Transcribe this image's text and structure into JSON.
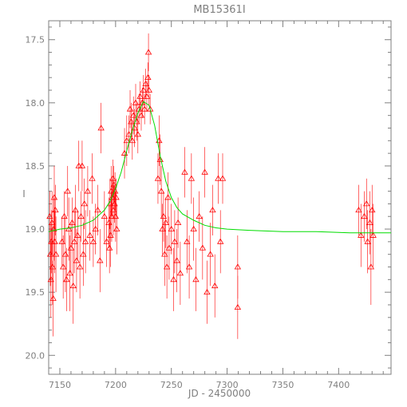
{
  "chart_data": {
    "type": "scatter",
    "title": "MB15361I",
    "xlabel": "JD - 2450000",
    "ylabel": "I",
    "xlim": [
      7140,
      7447
    ],
    "ylim": [
      20.15,
      17.35
    ],
    "y_inverted": true,
    "grid": false,
    "xticks": [
      7150,
      7200,
      7250,
      7300,
      7350,
      7400
    ],
    "yticks": [
      17.5,
      18.0,
      18.5,
      19.0,
      19.5,
      20.0
    ],
    "ytick_labels": [
      "17.5",
      "18.0",
      "18.5",
      "19.0",
      "19.5",
      "20.0"
    ],
    "colors": {
      "axis": "#7f7f7f",
      "data": "#ff0000",
      "model": "#00dd00"
    },
    "series": [
      {
        "kind": "data",
        "marker": "triangle",
        "points": [
          {
            "x": 7141,
            "y": 18.9,
            "err": 0.2
          },
          {
            "x": 7141.5,
            "y": 19.2,
            "err": 0.25
          },
          {
            "x": 7142,
            "y": 19.4,
            "err": 0.3
          },
          {
            "x": 7142.5,
            "y": 19.1,
            "err": 0.25
          },
          {
            "x": 7143,
            "y": 18.95,
            "err": 0.25
          },
          {
            "x": 7143.5,
            "y": 19.3,
            "err": 0.3
          },
          {
            "x": 7144,
            "y": 19.55,
            "err": 0.3
          },
          {
            "x": 7144.5,
            "y": 19.0,
            "err": 0.25
          },
          {
            "x": 7145,
            "y": 18.75,
            "err": 0.25
          },
          {
            "x": 7145.5,
            "y": 19.1,
            "err": 0.25
          },
          {
            "x": 7146,
            "y": 18.85,
            "err": 0.2
          },
          {
            "x": 7146.5,
            "y": 19.2,
            "err": 0.3
          },
          {
            "x": 7152,
            "y": 19.1,
            "err": 0.2
          },
          {
            "x": 7153,
            "y": 19.3,
            "err": 0.25
          },
          {
            "x": 7154,
            "y": 18.9,
            "err": 0.2
          },
          {
            "x": 7155,
            "y": 19.2,
            "err": 0.3
          },
          {
            "x": 7156,
            "y": 19.4,
            "err": 0.25
          },
          {
            "x": 7157,
            "y": 18.7,
            "err": 0.2
          },
          {
            "x": 7158,
            "y": 19.0,
            "err": 0.25
          },
          {
            "x": 7159,
            "y": 19.35,
            "err": 0.3
          },
          {
            "x": 7160,
            "y": 19.15,
            "err": 0.2
          },
          {
            "x": 7161,
            "y": 18.95,
            "err": 0.2
          },
          {
            "x": 7162,
            "y": 19.45,
            "err": 0.3
          },
          {
            "x": 7163,
            "y": 19.1,
            "err": 0.25
          },
          {
            "x": 7164,
            "y": 18.85,
            "err": 0.2
          },
          {
            "x": 7165,
            "y": 19.25,
            "err": 0.25
          },
          {
            "x": 7166,
            "y": 19.05,
            "err": 0.2
          },
          {
            "x": 7167,
            "y": 18.5,
            "err": 0.2
          },
          {
            "x": 7168,
            "y": 19.3,
            "err": 0.25
          },
          {
            "x": 7169,
            "y": 18.9,
            "err": 0.2
          },
          {
            "x": 7170,
            "y": 18.5,
            "err": 0.2
          },
          {
            "x": 7171,
            "y": 19.2,
            "err": 0.25
          },
          {
            "x": 7172,
            "y": 18.8,
            "err": 0.2
          },
          {
            "x": 7173,
            "y": 19.1,
            "err": 0.25
          },
          {
            "x": 7175,
            "y": 18.7,
            "err": 0.2
          },
          {
            "x": 7177,
            "y": 19.05,
            "err": 0.2
          },
          {
            "x": 7179,
            "y": 18.6,
            "err": 0.2
          },
          {
            "x": 7180,
            "y": 19.1,
            "err": 0.2
          },
          {
            "x": 7182,
            "y": 19.0,
            "err": 0.2
          },
          {
            "x": 7184,
            "y": 18.85,
            "err": 0.2
          },
          {
            "x": 7186,
            "y": 19.25,
            "err": 0.25
          },
          {
            "x": 7187,
            "y": 18.2,
            "err": 0.2
          },
          {
            "x": 7190,
            "y": 18.9,
            "err": 0.2
          },
          {
            "x": 7192,
            "y": 19.1,
            "err": 0.2
          },
          {
            "x": 7194,
            "y": 18.95,
            "err": 0.2
          },
          {
            "x": 7194.5,
            "y": 19.15,
            "err": 0.2
          },
          {
            "x": 7195,
            "y": 18.8,
            "err": 0.2
          },
          {
            "x": 7195.5,
            "y": 19.05,
            "err": 0.25
          },
          {
            "x": 7196,
            "y": 18.7,
            "err": 0.2
          },
          {
            "x": 7196.5,
            "y": 18.9,
            "err": 0.2
          },
          {
            "x": 7197,
            "y": 18.75,
            "err": 0.15
          },
          {
            "x": 7197.5,
            "y": 18.6,
            "err": 0.15
          },
          {
            "x": 7198,
            "y": 18.85,
            "err": 0.2
          },
          {
            "x": 7198.5,
            "y": 18.65,
            "err": 0.15
          },
          {
            "x": 7199,
            "y": 18.8,
            "err": 0.15
          },
          {
            "x": 7199.5,
            "y": 18.7,
            "err": 0.15
          },
          {
            "x": 7200,
            "y": 18.9,
            "err": 0.2
          },
          {
            "x": 7200.5,
            "y": 18.75,
            "err": 0.15
          },
          {
            "x": 7201,
            "y": 19.0,
            "err": 0.2
          },
          {
            "x": 7208,
            "y": 18.4,
            "err": 0.2
          },
          {
            "x": 7210,
            "y": 18.3,
            "err": 0.2
          },
          {
            "x": 7212,
            "y": 18.25,
            "err": 0.15
          },
          {
            "x": 7213,
            "y": 18.05,
            "err": 0.15
          },
          {
            "x": 7214,
            "y": 18.15,
            "err": 0.15
          },
          {
            "x": 7215,
            "y": 18.3,
            "err": 0.15
          },
          {
            "x": 7216,
            "y": 18.1,
            "err": 0.15
          },
          {
            "x": 7217,
            "y": 18.2,
            "err": 0.15
          },
          {
            "x": 7218,
            "y": 18.0,
            "err": 0.15
          },
          {
            "x": 7219,
            "y": 18.15,
            "err": 0.15
          },
          {
            "x": 7220,
            "y": 18.25,
            "err": 0.15
          },
          {
            "x": 7221,
            "y": 18.05,
            "err": 0.12
          },
          {
            "x": 7222,
            "y": 17.95,
            "err": 0.12
          },
          {
            "x": 7223,
            "y": 18.1,
            "err": 0.12
          },
          {
            "x": 7224,
            "y": 18.0,
            "err": 0.12
          },
          {
            "x": 7225,
            "y": 17.9,
            "err": 0.12
          },
          {
            "x": 7226,
            "y": 18.05,
            "err": 0.12
          },
          {
            "x": 7227,
            "y": 17.85,
            "err": 0.12
          },
          {
            "x": 7228,
            "y": 17.95,
            "err": 0.12
          },
          {
            "x": 7229,
            "y": 17.8,
            "err": 0.12
          },
          {
            "x": 7229.5,
            "y": 17.6,
            "err": 0.15
          },
          {
            "x": 7230,
            "y": 17.9,
            "err": 0.12
          },
          {
            "x": 7231,
            "y": 18.05,
            "err": 0.12
          },
          {
            "x": 7238,
            "y": 18.6,
            "err": 0.2
          },
          {
            "x": 7239,
            "y": 18.3,
            "err": 0.2
          },
          {
            "x": 7240,
            "y": 18.45,
            "err": 0.2
          },
          {
            "x": 7241,
            "y": 18.7,
            "err": 0.2
          },
          {
            "x": 7242,
            "y": 19.0,
            "err": 0.2
          },
          {
            "x": 7243,
            "y": 18.9,
            "err": 0.2
          },
          {
            "x": 7244,
            "y": 19.2,
            "err": 0.25
          },
          {
            "x": 7245,
            "y": 18.95,
            "err": 0.2
          },
          {
            "x": 7246,
            "y": 19.3,
            "err": 0.25
          },
          {
            "x": 7247,
            "y": 18.75,
            "err": 0.2
          },
          {
            "x": 7248,
            "y": 19.15,
            "err": 0.25
          },
          {
            "x": 7250,
            "y": 19.0,
            "err": 0.2
          },
          {
            "x": 7252,
            "y": 19.4,
            "err": 0.25
          },
          {
            "x": 7253,
            "y": 19.1,
            "err": 0.25
          },
          {
            "x": 7255,
            "y": 19.25,
            "err": 0.25
          },
          {
            "x": 7256,
            "y": 18.95,
            "err": 0.2
          },
          {
            "x": 7258,
            "y": 19.35,
            "err": 0.25
          },
          {
            "x": 7262,
            "y": 18.55,
            "err": 0.2
          },
          {
            "x": 7264,
            "y": 19.1,
            "err": 0.25
          },
          {
            "x": 7266,
            "y": 19.3,
            "err": 0.25
          },
          {
            "x": 7268,
            "y": 18.6,
            "err": 0.2
          },
          {
            "x": 7270,
            "y": 19.0,
            "err": 0.25
          },
          {
            "x": 7272,
            "y": 19.4,
            "err": 0.25
          },
          {
            "x": 7275,
            "y": 18.9,
            "err": 0.2
          },
          {
            "x": 7278,
            "y": 19.15,
            "err": 0.25
          },
          {
            "x": 7280,
            "y": 18.55,
            "err": 0.2
          },
          {
            "x": 7282,
            "y": 19.5,
            "err": 0.25
          },
          {
            "x": 7285,
            "y": 19.2,
            "err": 0.25
          },
          {
            "x": 7287,
            "y": 18.85,
            "err": 0.2
          },
          {
            "x": 7289,
            "y": 19.45,
            "err": 0.25
          },
          {
            "x": 7292,
            "y": 18.6,
            "err": 0.2
          },
          {
            "x": 7294,
            "y": 19.1,
            "err": 0.25
          },
          {
            "x": 7296,
            "y": 18.6,
            "err": 0.2
          },
          {
            "x": 7309.5,
            "y": 19.3,
            "err": 0.25
          },
          {
            "x": 7309.5,
            "y": 19.62,
            "err": 0.25
          },
          {
            "x": 7418,
            "y": 18.85,
            "err": 0.2
          },
          {
            "x": 7420,
            "y": 19.05,
            "err": 0.25
          },
          {
            "x": 7423,
            "y": 18.9,
            "err": 0.2
          },
          {
            "x": 7425,
            "y": 18.8,
            "err": 0.2
          },
          {
            "x": 7426,
            "y": 19.1,
            "err": 0.25
          },
          {
            "x": 7428,
            "y": 18.95,
            "err": 0.25
          },
          {
            "x": 7429,
            "y": 19.3,
            "err": 0.3
          },
          {
            "x": 7430,
            "y": 18.85,
            "err": 0.2
          },
          {
            "x": 7431,
            "y": 19.05,
            "err": 0.25
          }
        ]
      },
      {
        "kind": "model",
        "line": true,
        "x": [
          7140,
          7150,
          7160,
          7170,
          7180,
          7190,
          7195,
          7200,
          7205,
          7210,
          7215,
          7220,
          7225,
          7230,
          7235,
          7240,
          7245,
          7250,
          7255,
          7260,
          7270,
          7280,
          7290,
          7300,
          7320,
          7350,
          7380,
          7410,
          7440,
          7447
        ],
        "y": [
          19.02,
          19.0,
          18.99,
          18.97,
          18.93,
          18.85,
          18.78,
          18.68,
          18.55,
          18.38,
          18.22,
          18.08,
          17.99,
          18.02,
          18.18,
          18.42,
          18.62,
          18.75,
          18.83,
          18.88,
          18.93,
          18.97,
          18.99,
          19.0,
          19.01,
          19.02,
          19.02,
          19.03,
          19.03,
          19.03
        ]
      }
    ]
  }
}
